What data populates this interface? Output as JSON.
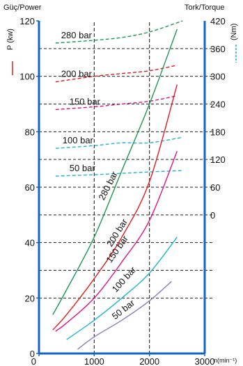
{
  "chart_data": {
    "type": "line",
    "title_left": "Güç/Power",
    "title_right": "Tork/Torque",
    "left_axis_label": "P (kw)",
    "right_axis_label": "(Nm)",
    "x_unit_label": "n(min⁻¹)",
    "x_ticks": [
      "0",
      "1000",
      "2000",
      "3000"
    ],
    "left_ticks": [
      "0",
      "20",
      "40",
      "60",
      "80",
      "100",
      "120"
    ],
    "right_ticks": [
      "0",
      "60",
      "120",
      "180",
      "240",
      "300",
      "360",
      "420"
    ],
    "xlim": [
      0,
      3000
    ],
    "ylim_power": [
      0,
      120
    ],
    "ylim_torque_right": [
      0,
      420
    ],
    "grid": true,
    "power_series": [
      {
        "name": "280 bar",
        "label": "280 bar",
        "color": "#1a9850",
        "x": [
          250,
          500,
          1000,
          1500,
          2000,
          2500
        ],
        "y": [
          14,
          23,
          42,
          66,
          90,
          117
        ]
      },
      {
        "name": "200 bar",
        "label": "200 bar",
        "color": "#e41a1c",
        "x": [
          250,
          500,
          1000,
          1500,
          2000,
          2500
        ],
        "y": [
          8.5,
          14,
          27,
          42,
          62,
          97
        ]
      },
      {
        "name": "150 bar",
        "label": "150 bar",
        "color": "#e01385",
        "x": [
          300,
          500,
          1000,
          1500,
          2000,
          2500
        ],
        "y": [
          8,
          11,
          20,
          33,
          48,
          73
        ]
      },
      {
        "name": "100 bar",
        "label": "100 bar",
        "color": "#1eb4d2",
        "x": [
          500,
          1000,
          1500,
          2000,
          2500
        ],
        "y": [
          5,
          12,
          20,
          29,
          42
        ]
      },
      {
        "name": "50 bar",
        "label": "50 bar",
        "color": "#8a7cc0",
        "x": [
          700,
          1000,
          1500,
          2000,
          2400
        ],
        "y": [
          1.5,
          6,
          12,
          19,
          26
        ]
      }
    ],
    "torque_series": [
      {
        "name": "280 bar",
        "label": "280 bar",
        "color": "#1a9850",
        "x": [
          300,
          1000,
          1500,
          2000,
          2600
        ],
        "y": [
          112,
          113,
          114,
          116,
          120
        ]
      },
      {
        "name": "200 bar",
        "label": "200 bar",
        "color": "#e41a1c",
        "x": [
          300,
          1000,
          1500,
          2000,
          2500
        ],
        "y": [
          98,
          100,
          101,
          102,
          104
        ]
      },
      {
        "name": "150 bar",
        "label": "150 bar",
        "color": "#e01385",
        "x": [
          300,
          1000,
          1500,
          2000,
          2500
        ],
        "y": [
          88,
          89,
          90,
          91,
          93
        ]
      },
      {
        "name": "100 bar",
        "label": "100 bar",
        "color": "#1eb4d2",
        "x": [
          300,
          1000,
          1500,
          2000,
          2600
        ],
        "y": [
          74,
          75,
          76,
          76,
          78
        ]
      },
      {
        "name": "50 bar",
        "label": "50 bar",
        "color": "#1eb4d2",
        "x": [
          300,
          1000,
          1500,
          2000,
          2600
        ],
        "y": [
          64,
          64.5,
          65,
          65.5,
          66
        ]
      }
    ]
  }
}
